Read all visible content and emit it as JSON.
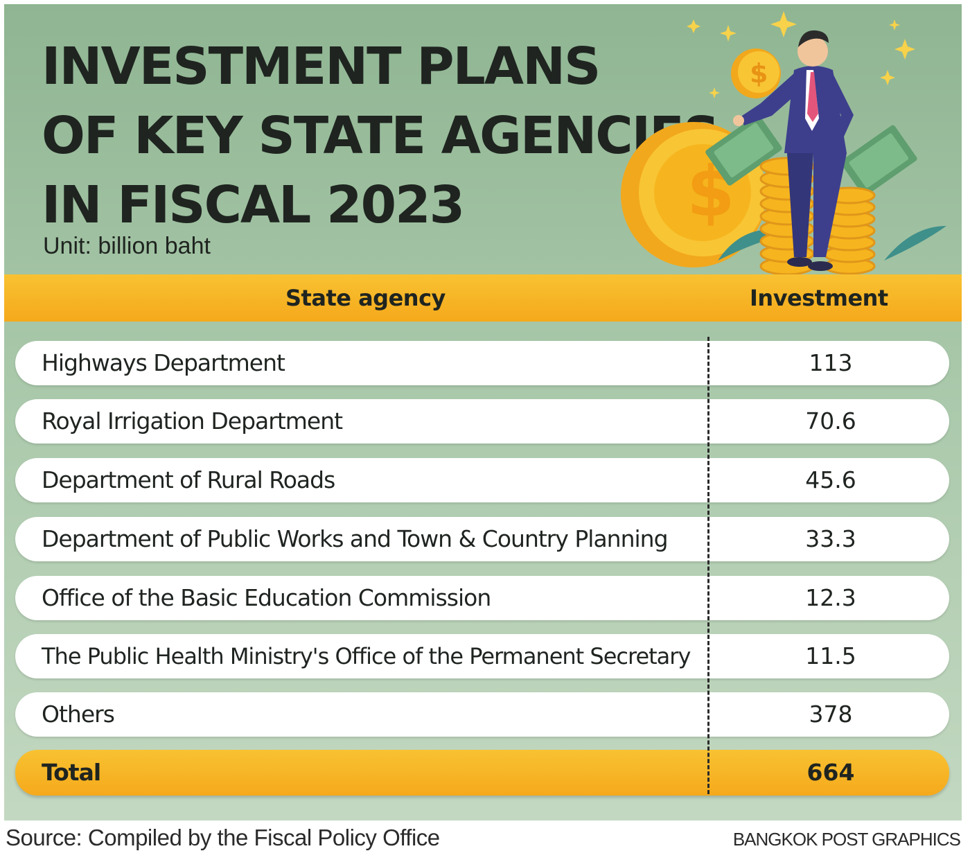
{
  "title_lines": [
    "INVESTMENT PLANS",
    "OF KEY STATE AGENCIES",
    "IN FISCAL 2023"
  ],
  "unit": "Unit: billion baht",
  "table": {
    "headers": {
      "agency": "State agency",
      "investment": "Investment"
    },
    "rows": [
      {
        "agency": "Highways Department",
        "investment": "113"
      },
      {
        "agency": "Royal Irrigation Department",
        "investment": "70.6"
      },
      {
        "agency": "Department of Rural Roads",
        "investment": "45.6"
      },
      {
        "agency": "Department of Public Works and Town & Country Planning",
        "investment": "33.3"
      },
      {
        "agency": "Office of the Basic Education Commission",
        "investment": "12.3"
      },
      {
        "agency": "The Public Health Ministry's Office of the Permanent Secretary",
        "investment": "11.5"
      },
      {
        "agency": "Others",
        "investment": "378"
      }
    ],
    "total": {
      "label": "Total",
      "value": "664"
    }
  },
  "chart_data": {
    "type": "table",
    "title": "INVESTMENT PLANS OF KEY STATE AGENCIES IN FISCAL 2023",
    "subtitle": "Unit: billion baht",
    "columns": [
      "State agency",
      "Investment"
    ],
    "categories": [
      "Highways Department",
      "Royal Irrigation Department",
      "Department of Rural Roads",
      "Department of Public Works and Town & Country Planning",
      "Office of the Basic Education Commission",
      "The Public Health Ministry's Office of the Permanent Secretary",
      "Others"
    ],
    "values": [
      113,
      70.6,
      45.6,
      33.3,
      12.3,
      11.5,
      378
    ],
    "total": 664
  },
  "footer": {
    "source": "Source: Compiled by the Fiscal Policy Office",
    "credit": "BANGKOK POST GRAPHICS"
  },
  "colors": {
    "background": "#a9c8aa",
    "accent_yellow": "#f5a91b",
    "text": "#1f2420",
    "suit": "#3d3f8c",
    "coin": "#f6b51e"
  },
  "illustration": {
    "icons": [
      "businessman-icon",
      "dollar-coin-icon",
      "coin-stack-icon",
      "banknote-icon",
      "sparkle-icon"
    ]
  }
}
